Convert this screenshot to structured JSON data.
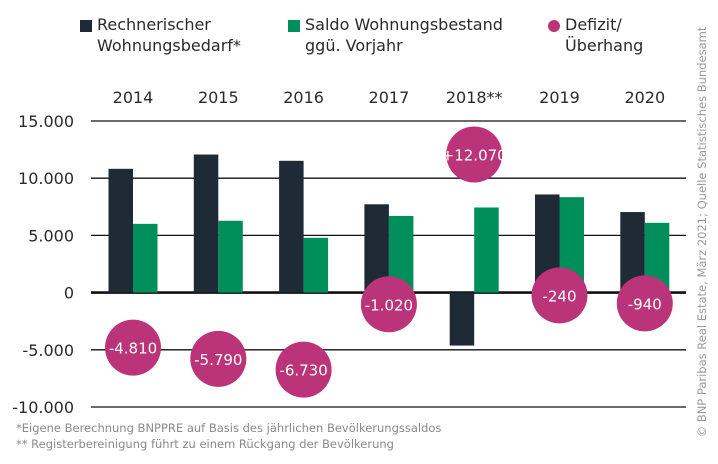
{
  "legend": [
    {
      "label": "Rechnerischer\nWohnungsbedarf*",
      "color": "#1e2a35",
      "shape": "square"
    },
    {
      "label": "Saldo Wohnungsbestand\nggü. Vorjahr",
      "color": "#008f5a",
      "shape": "square"
    },
    {
      "label": "Defizit/\nÜberhang",
      "color": "#bb3378",
      "shape": "circle"
    }
  ],
  "footnotes": [
    "*Eigene Berechnung BNPPRE auf Basis des jährlichen Bevölkerungssaldos",
    "** Registerbereinigung führt zu einem Rückgang der Bevölkerung"
  ],
  "source": "© BNP Paribas Real Estate, März 2021; Quelle Statistisches Bundesamt",
  "chart_data": {
    "type": "bar",
    "title": "",
    "xlabel": "",
    "ylabel": "",
    "categories": [
      "2014",
      "2015",
      "2016",
      "2017",
      "2018**",
      "2019",
      "2020"
    ],
    "series": [
      {
        "name": "Rechnerischer Wohnungsbedarf*",
        "color": "#1e2a35",
        "values": [
          10820,
          12070,
          11520,
          7720,
          -4630,
          8580,
          7040
        ]
      },
      {
        "name": "Saldo Wohnungsbestand ggü. Vorjahr",
        "color": "#008f5a",
        "values": [
          6010,
          6280,
          4790,
          6700,
          7440,
          8340,
          6100
        ]
      }
    ],
    "bubbles": {
      "name": "Defizit/Überhang",
      "color": "#bb3378",
      "values": [
        -4810,
        -5790,
        -6730,
        -1020,
        12070,
        -240,
        -940
      ],
      "labels": [
        "-4.810",
        "-5.790",
        "-6.730",
        "-1.020",
        "+12.070",
        "-240",
        "-940"
      ]
    },
    "ylim": [
      -10000,
      15000
    ],
    "yticks": [
      15000,
      10000,
      5000,
      0,
      -5000,
      -10000
    ],
    "ytick_labels": [
      "15.000",
      "10.000",
      "5.000",
      "0",
      "-5.000",
      "-10.000"
    ],
    "grid": true,
    "legend_position": "top",
    "xtick_position": "top"
  }
}
